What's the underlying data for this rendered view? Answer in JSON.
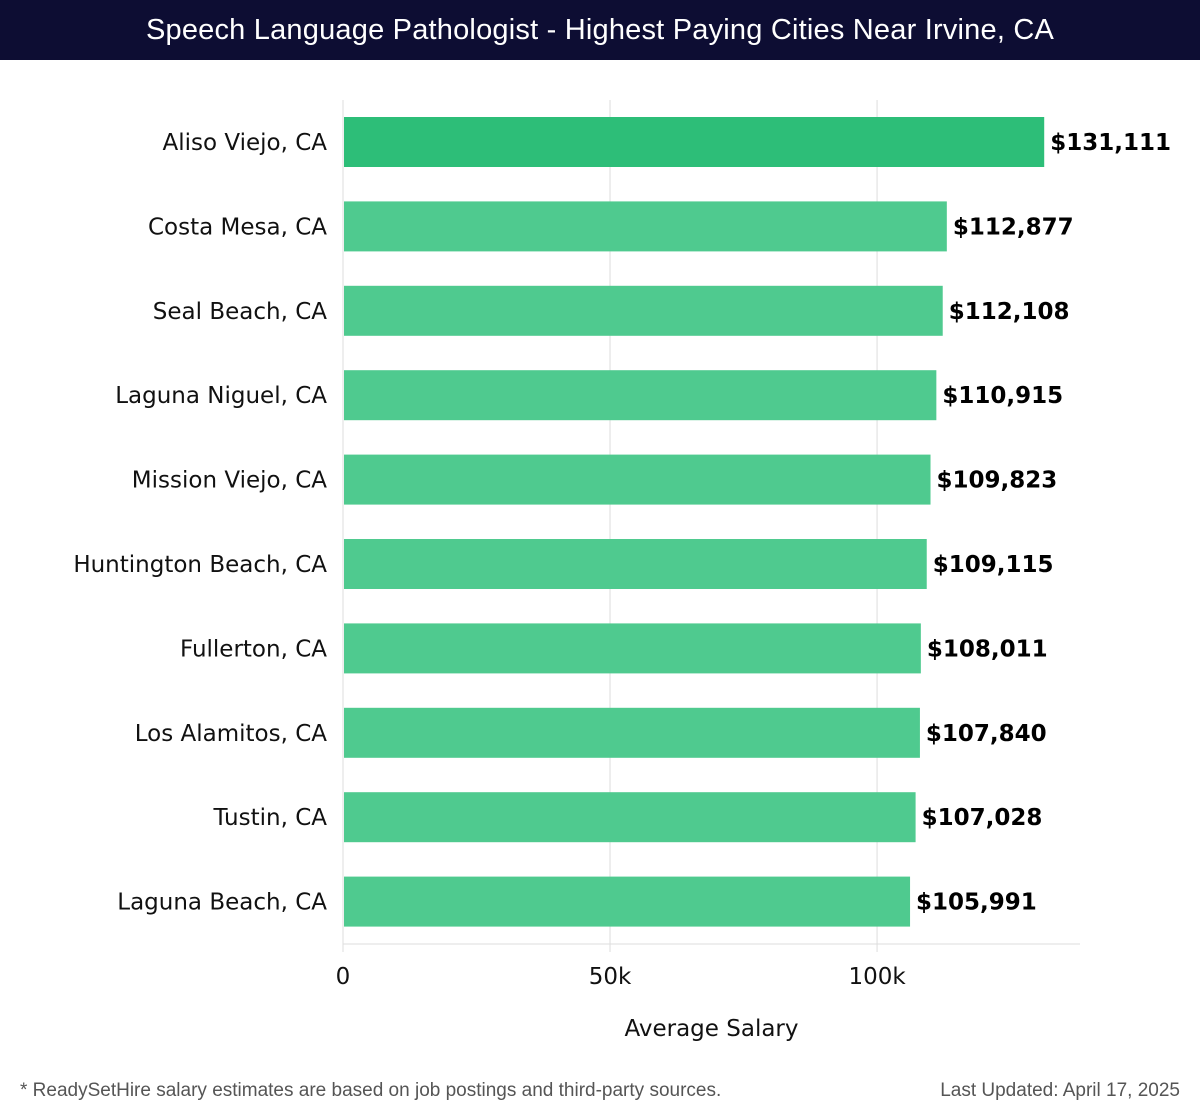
{
  "title": "Speech Language Pathologist - Highest Paying Cities Near Irvine, CA",
  "footnote": "* ReadySetHire salary estimates are based on job postings and third-party sources.",
  "last_updated": "Last Updated: April 17, 2025",
  "colors": {
    "highlight_bar": "#2dbe78",
    "bar": "#4fca8f",
    "grid": "#dddddd",
    "header_bg": "#0d0d33"
  },
  "chart_data": {
    "type": "bar",
    "orientation": "horizontal",
    "title": "Speech Language Pathologist - Highest Paying Cities Near Irvine, CA",
    "xlabel": "Average Salary",
    "ylabel": "",
    "xlim": [
      0,
      138000
    ],
    "xticks": [
      0,
      50000,
      100000
    ],
    "xtick_labels": [
      "0",
      "50k",
      "100k"
    ],
    "categories": [
      "Aliso Viejo, CA",
      "Costa Mesa, CA",
      "Seal Beach, CA",
      "Laguna Niguel, CA",
      "Mission Viejo, CA",
      "Huntington Beach, CA",
      "Fullerton, CA",
      "Los Alamitos, CA",
      "Tustin, CA",
      "Laguna Beach, CA"
    ],
    "values": [
      131111,
      112877,
      112108,
      110915,
      109823,
      109115,
      108011,
      107840,
      107028,
      105991
    ],
    "value_labels": [
      "$131,111",
      "$112,877",
      "$112,108",
      "$110,915",
      "$109,823",
      "$109,115",
      "$108,011",
      "$107,840",
      "$107,028",
      "$105,991"
    ]
  }
}
